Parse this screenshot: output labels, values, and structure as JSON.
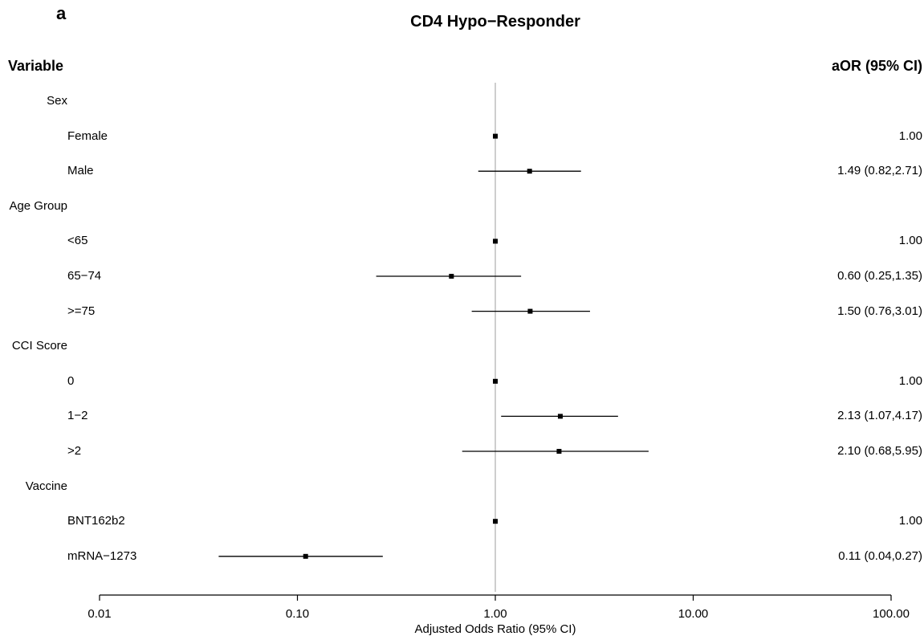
{
  "panel_label": "a",
  "chart_data": {
    "type": "forest",
    "title": "CD4 Hypo−Responder",
    "column_headers": {
      "variable": "Variable",
      "estimate": "aOR (95% CI)"
    },
    "xlabel": "Adjusted Odds Ratio (95% CI)",
    "x_scale": "log",
    "xlim": [
      0.01,
      100
    ],
    "x_ticks": [
      0.01,
      0.1,
      1,
      10,
      100
    ],
    "x_tick_labels": [
      "0.01",
      "0.10",
      "1.00",
      "10.00",
      "100.00"
    ],
    "reference_line": 1,
    "rows": [
      {
        "label": "Sex",
        "level": "group"
      },
      {
        "label": "Female",
        "level": "item",
        "or": 1.0,
        "lo": null,
        "hi": null,
        "text": "1.00"
      },
      {
        "label": "Male",
        "level": "item",
        "or": 1.49,
        "lo": 0.82,
        "hi": 2.71,
        "text": "1.49 (0.82,2.71)"
      },
      {
        "label": "Age Group",
        "level": "group"
      },
      {
        "label": "<65",
        "level": "item",
        "or": 1.0,
        "lo": null,
        "hi": null,
        "text": "1.00"
      },
      {
        "label": "65−74",
        "level": "item",
        "or": 0.6,
        "lo": 0.25,
        "hi": 1.35,
        "text": "0.60 (0.25,1.35)"
      },
      {
        "label": ">=75",
        "level": "item",
        "or": 1.5,
        "lo": 0.76,
        "hi": 3.01,
        "text": "1.50 (0.76,3.01)"
      },
      {
        "label": "CCI Score",
        "level": "group"
      },
      {
        "label": "0",
        "level": "item",
        "or": 1.0,
        "lo": null,
        "hi": null,
        "text": "1.00"
      },
      {
        "label": "1−2",
        "level": "item",
        "or": 2.13,
        "lo": 1.07,
        "hi": 4.17,
        "text": "2.13 (1.07,4.17)"
      },
      {
        "label": ">2",
        "level": "item",
        "or": 2.1,
        "lo": 0.68,
        "hi": 5.95,
        "text": "2.10 (0.68,5.95)"
      },
      {
        "label": "Vaccine",
        "level": "group"
      },
      {
        "label": "BNT162b2",
        "level": "item",
        "or": 1.0,
        "lo": null,
        "hi": null,
        "text": "1.00"
      },
      {
        "label": "mRNA−1273",
        "level": "item",
        "or": 0.11,
        "lo": 0.04,
        "hi": 0.27,
        "text": "0.11 (0.04,0.27)"
      }
    ]
  }
}
